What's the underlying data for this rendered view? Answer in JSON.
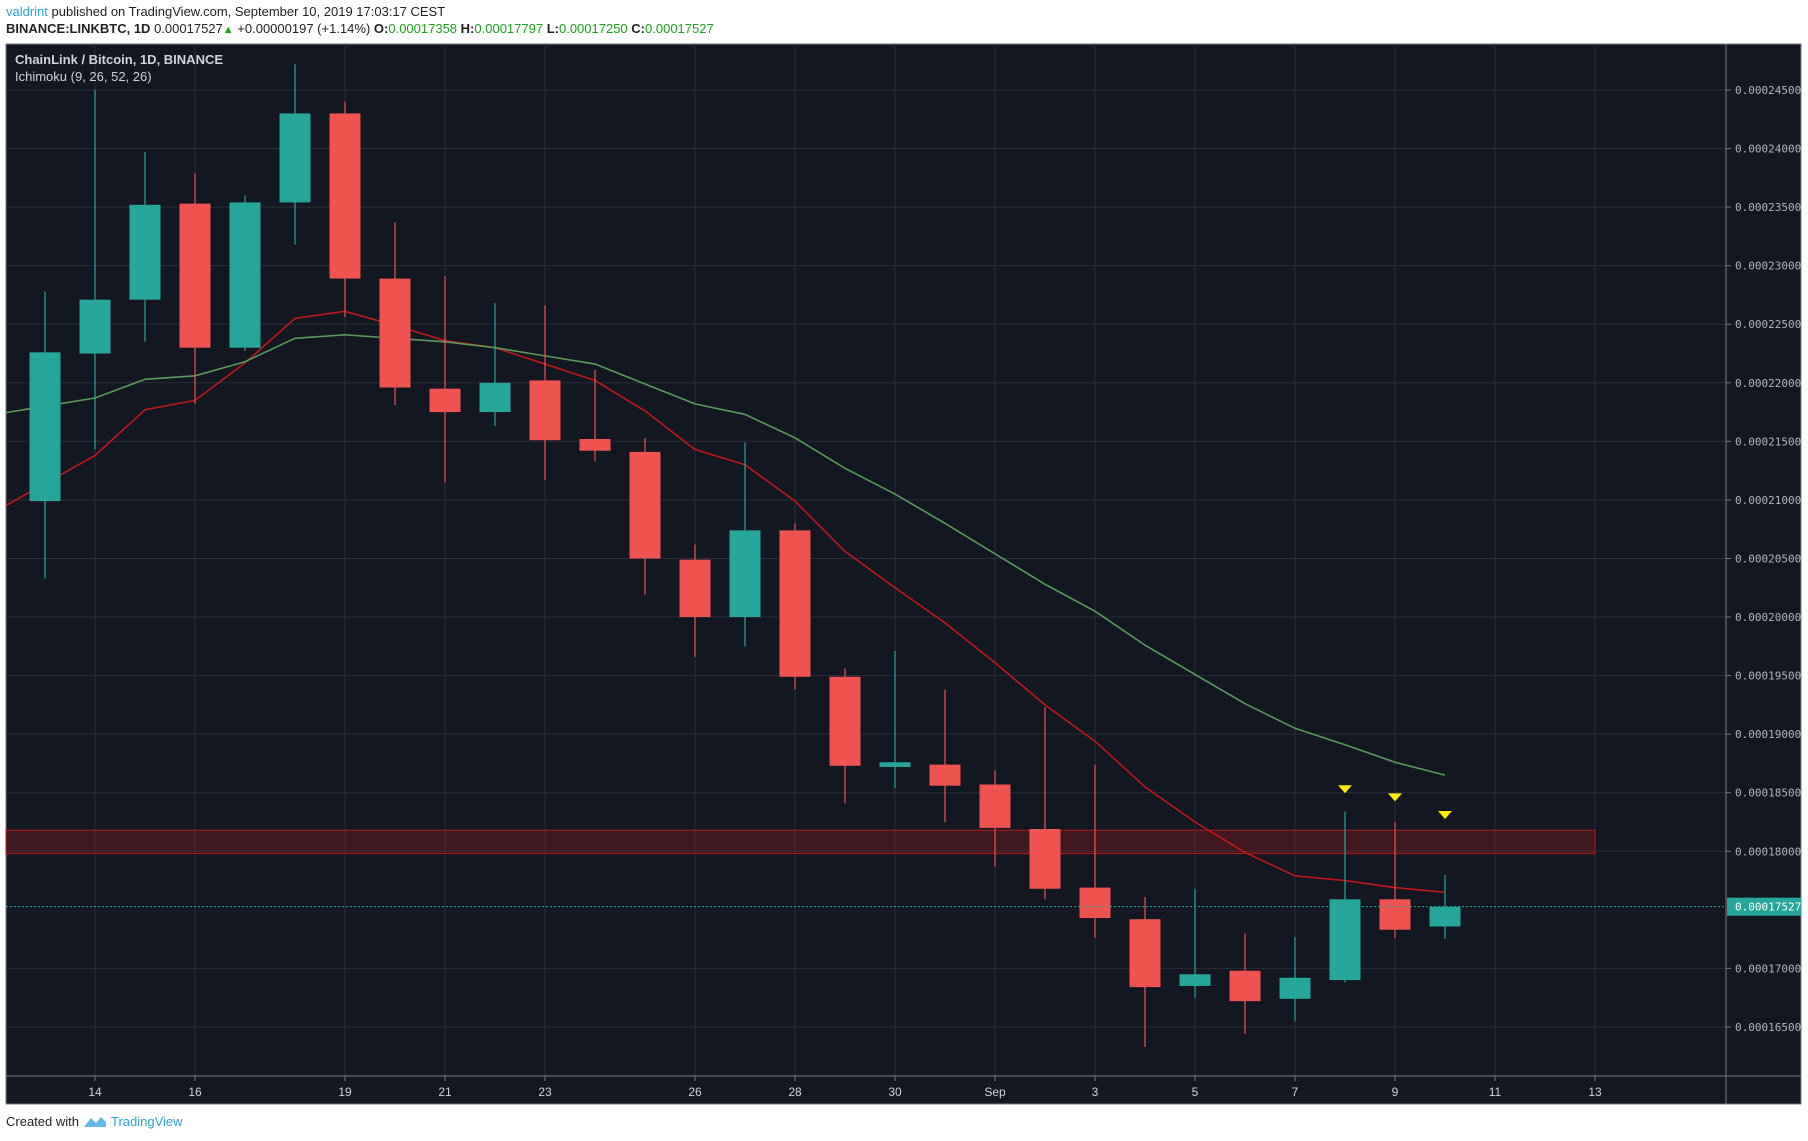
{
  "header": {
    "author": "valdrint",
    "published_text": "published on TradingView.com, September 10, 2019 17:03:17 CEST",
    "symbol": "BINANCE:LINKBTC, 1D",
    "last_price": "0.00017527",
    "change": "+0.00000197 (+1.14%)",
    "open_label": "O:",
    "open": "0.00017358",
    "high_label": "H:",
    "high": "0.00017797",
    "low_label": "L:",
    "low": "0.00017250",
    "close_label": "C:",
    "close": "0.00017527"
  },
  "footer": {
    "created_with": "Created with",
    "brand": "TradingView"
  },
  "chart_data": {
    "type": "candlestick",
    "title": "ChainLink / Bitcoin, 1D, BINANCE",
    "indicator": "Ichimoku (9, 26, 52, 26)",
    "ylim": [
      0.000162,
      0.0002475
    ],
    "grid": true,
    "y_ticks": [
      "0.00024500",
      "0.00024000",
      "0.00023500",
      "0.00023000",
      "0.00022500",
      "0.00022000",
      "0.00021500",
      "0.00021000",
      "0.00020500",
      "0.00020000",
      "0.00019500",
      "0.00019000",
      "0.00018500",
      "0.00018000",
      "0.00017000",
      "0.00016500"
    ],
    "x_ticks": [
      {
        "label": "14",
        "date": "2019-08-14"
      },
      {
        "label": "16",
        "date": "2019-08-16"
      },
      {
        "label": "19",
        "date": "2019-08-19"
      },
      {
        "label": "21",
        "date": "2019-08-21"
      },
      {
        "label": "23",
        "date": "2019-08-23"
      },
      {
        "label": "26",
        "date": "2019-08-26"
      },
      {
        "label": "28",
        "date": "2019-08-28"
      },
      {
        "label": "30",
        "date": "2019-08-30"
      },
      {
        "label": "Sep",
        "date": "2019-09-01"
      },
      {
        "label": "3",
        "date": "2019-09-03"
      },
      {
        "label": "5",
        "date": "2019-09-05"
      },
      {
        "label": "7",
        "date": "2019-09-07"
      },
      {
        "label": "9",
        "date": "2019-09-09"
      },
      {
        "label": "11",
        "date": "2019-09-11"
      },
      {
        "label": "13",
        "date": "2019-09-13"
      }
    ],
    "last_price_label": "0.00017527",
    "last_price": 0.00017527,
    "colors": {
      "up": "#26a69a",
      "down": "#ef5350",
      "conversion": "#c2181b",
      "base": "#5b9a5b",
      "zone": "#b71c1c",
      "marker": "#ffeb00",
      "background": "#131722"
    },
    "candles": [
      {
        "date": "2019-08-13",
        "o": 0.0002099,
        "h": 0.0002278,
        "l": 0.0002033,
        "c": 0.0002226
      },
      {
        "date": "2019-08-14",
        "o": 0.0002225,
        "h": 0.000245,
        "l": 0.0002143,
        "c": 0.0002271
      },
      {
        "date": "2019-08-15",
        "o": 0.0002271,
        "h": 0.0002397,
        "l": 0.0002235,
        "c": 0.0002352
      },
      {
        "date": "2019-08-16",
        "o": 0.0002353,
        "h": 0.0002379,
        "l": 0.0002182,
        "c": 0.000223
      },
      {
        "date": "2019-08-17",
        "o": 0.000223,
        "h": 0.000236,
        "l": 0.0002227,
        "c": 0.0002354
      },
      {
        "date": "2019-08-18",
        "o": 0.0002354,
        "h": 0.0002472,
        "l": 0.0002318,
        "c": 0.000243
      },
      {
        "date": "2019-08-19",
        "o": 0.000243,
        "h": 0.000244,
        "l": 0.0002256,
        "c": 0.0002289
      },
      {
        "date": "2019-08-20",
        "o": 0.0002289,
        "h": 0.0002337,
        "l": 0.0002181,
        "c": 0.0002196
      },
      {
        "date": "2019-08-21",
        "o": 0.0002195,
        "h": 0.0002291,
        "l": 0.0002115,
        "c": 0.0002175
      },
      {
        "date": "2019-08-22",
        "o": 0.0002175,
        "h": 0.0002268,
        "l": 0.0002163,
        "c": 0.00022
      },
      {
        "date": "2019-08-23",
        "o": 0.0002202,
        "h": 0.0002266,
        "l": 0.0002117,
        "c": 0.0002151
      },
      {
        "date": "2019-08-24",
        "o": 0.0002152,
        "h": 0.0002211,
        "l": 0.0002133,
        "c": 0.0002142
      },
      {
        "date": "2019-08-25",
        "o": 0.0002141,
        "h": 0.0002153,
        "l": 0.0002019,
        "c": 0.000205
      },
      {
        "date": "2019-08-26",
        "o": 0.0002049,
        "h": 0.0002062,
        "l": 0.0001966,
        "c": 0.0002
      },
      {
        "date": "2019-08-27",
        "o": 0.0002,
        "h": 0.0002149,
        "l": 0.0001975,
        "c": 0.0002074
      },
      {
        "date": "2019-08-28",
        "o": 0.0002074,
        "h": 0.000208,
        "l": 0.0001938,
        "c": 0.0001949
      },
      {
        "date": "2019-08-29",
        "o": 0.0001949,
        "h": 0.0001956,
        "l": 0.0001841,
        "c": 0.0001873
      },
      {
        "date": "2019-08-30",
        "o": 0.0001872,
        "h": 0.0001971,
        "l": 0.0001854,
        "c": 0.0001876
      },
      {
        "date": "2019-08-31",
        "o": 0.0001874,
        "h": 0.0001938,
        "l": 0.0001825,
        "c": 0.0001856
      },
      {
        "date": "2019-09-01",
        "o": 0.0001857,
        "h": 0.0001869,
        "l": 0.0001787,
        "c": 0.000182
      },
      {
        "date": "2019-09-02",
        "o": 0.0001819,
        "h": 0.0001923,
        "l": 0.0001759,
        "c": 0.0001768
      },
      {
        "date": "2019-09-03",
        "o": 0.0001769,
        "h": 0.0001874,
        "l": 0.0001726,
        "c": 0.0001743
      },
      {
        "date": "2019-09-04",
        "o": 0.0001742,
        "h": 0.0001761,
        "l": 0.0001633,
        "c": 0.0001684
      },
      {
        "date": "2019-09-05",
        "o": 0.0001685,
        "h": 0.0001768,
        "l": 0.0001675,
        "c": 0.0001695
      },
      {
        "date": "2019-09-06",
        "o": 0.0001698,
        "h": 0.000173,
        "l": 0.0001644,
        "c": 0.0001672
      },
      {
        "date": "2019-09-07",
        "o": 0.0001674,
        "h": 0.0001727,
        "l": 0.0001655,
        "c": 0.0001692
      },
      {
        "date": "2019-09-08",
        "o": 0.000169,
        "h": 0.0001834,
        "l": 0.0001688,
        "c": 0.0001759
      },
      {
        "date": "2019-09-09",
        "o": 0.0001759,
        "h": 0.0001825,
        "l": 0.0001726,
        "c": 0.0001733
      },
      {
        "date": "2019-09-10",
        "o": 0.00017358,
        "h": 0.00017797,
        "l": 0.0001725,
        "c": 0.00017527
      }
    ],
    "series": [
      {
        "key": "conversion",
        "values": [
          0.0002114,
          0.0002138,
          0.0002177,
          0.0002185,
          0.0002217,
          0.0002255,
          0.0002261,
          0.0002249,
          0.0002236,
          0.000223,
          0.0002216,
          0.0002202,
          0.0002176,
          0.0002143,
          0.000213,
          0.0002099,
          0.0002056,
          0.0002025,
          0.0001995,
          0.0001961,
          0.0001925,
          0.0001894,
          0.0001855,
          0.0001825,
          0.0001799,
          0.0001779,
          0.0001775,
          0.0001769,
          0.0001765
        ]
      },
      {
        "key": "base",
        "values": [
          0.000218,
          0.0002187,
          0.0002203,
          0.0002206,
          0.0002218,
          0.0002238,
          0.0002241,
          0.0002238,
          0.0002235,
          0.000223,
          0.0002223,
          0.0002216,
          0.0002199,
          0.0002182,
          0.0002173,
          0.0002153,
          0.0002127,
          0.0002105,
          0.000208,
          0.0002054,
          0.0002028,
          0.0002005,
          0.0001976,
          0.0001951,
          0.0001926,
          0.0001905,
          0.0001891,
          0.0001876,
          0.0001865
        ]
      }
    ],
    "resistance_zone": {
      "from": 0.0001798,
      "to": 0.0001818,
      "start_date": "2019-08-12",
      "end_date": "2019-09-13"
    },
    "markers": [
      {
        "date": "2019-09-08",
        "price": 0.0001853,
        "shape": "triangle-down"
      },
      {
        "date": "2019-09-09",
        "price": 0.0001846,
        "shape": "triangle-down"
      },
      {
        "date": "2019-09-10",
        "price": 0.0001831,
        "shape": "triangle-down"
      }
    ]
  }
}
